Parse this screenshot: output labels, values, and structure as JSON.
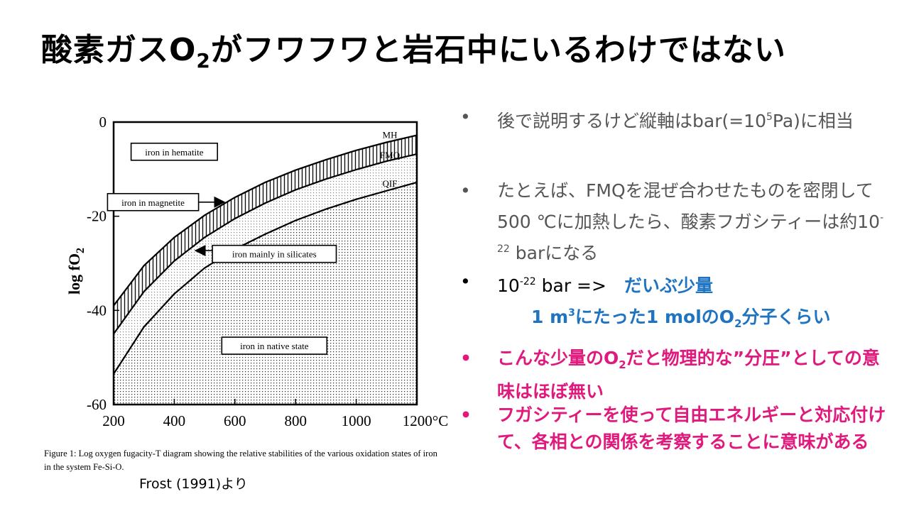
{
  "slide": {
    "title_a": "酸素ガスO",
    "title_sub": "2",
    "title_b": "がフワフワと岩石中にいるわけではない"
  },
  "figure": {
    "caption_line1": "Figure 1: Log oxygen fugacity-T diagram showing the relative stabilities of the various oxidation states of iron",
    "caption_line2": "in the system Fe-Si-O.",
    "credit": "Frost (1991)より"
  },
  "chart_data": {
    "type": "line",
    "xlabel": "",
    "ylabel": "log fO2",
    "ylabel_main": "log fO",
    "ylabel_sub": "2",
    "xlim": [
      200,
      1200
    ],
    "ylim": [
      -60,
      0
    ],
    "x_ticks": [
      200,
      400,
      600,
      800,
      1000,
      1200
    ],
    "x_tick_labels": [
      "200",
      "400",
      "600",
      "800",
      "1000",
      "1200°C"
    ],
    "y_ticks": [
      0,
      -20,
      -40,
      -60
    ],
    "y_tick_labels": [
      "0",
      "-20",
      "-40",
      "-60"
    ],
    "grid": false,
    "series": [
      {
        "name": "MH",
        "x": [
          200,
          300,
          400,
          500,
          600,
          700,
          800,
          900,
          1000,
          1100,
          1200
        ],
        "y": [
          -39,
          -30.5,
          -24.5,
          -19.8,
          -16,
          -12.8,
          -10.2,
          -8,
          -6,
          -4.3,
          -2.8
        ]
      },
      {
        "name": "FMQ",
        "x": [
          200,
          300,
          400,
          500,
          600,
          700,
          800,
          900,
          1000,
          1100,
          1200
        ],
        "y": [
          -45,
          -36,
          -29.5,
          -24.5,
          -20.5,
          -17.2,
          -14.4,
          -12.1,
          -10.1,
          -8.3,
          -6.8
        ]
      },
      {
        "name": "QIF",
        "x": [
          200,
          300,
          400,
          500,
          600,
          700,
          800,
          900,
          1000,
          1100,
          1200
        ],
        "y": [
          -53.5,
          -43.5,
          -36.5,
          -31,
          -27,
          -23.8,
          -20.9,
          -18.5,
          -16.4,
          -14.6,
          -12.8
        ]
      }
    ],
    "field_labels": [
      {
        "text": "iron in hematite",
        "x": 400,
        "y": -6.3
      },
      {
        "text": "iron in magnetite",
        "x": 330,
        "y": -17
      },
      {
        "text": "iron mainly in silicates",
        "x": 730,
        "y": -28
      },
      {
        "text": "iron in native state",
        "x": 730,
        "y": -47.5
      }
    ]
  },
  "bullets": {
    "b1_a": "後で説明するけど縦軸はbar(=10",
    "b1_sup": "5",
    "b1_b": "Pa)に相当",
    "b2_a": "たとえば、FMQを混ぜ合わせたものを密閉して500 ℃に加熱したら、酸素フガシティーは約10",
    "b2_sup": "-22",
    "b2_b": " barになる",
    "b3_a": "10",
    "b3_sup": "-22",
    "b3_b": " bar =>",
    "b3_blue1": "だいぶ少量",
    "b3_blue2a": "1 m",
    "b3_blue2_sup": "3",
    "b3_blue2b": "にたった1 molのO",
    "b3_blue2_sub": "2",
    "b3_blue2c": "分子くらい",
    "b4_a": "こんな少量のO",
    "b4_sub": "2",
    "b4_b": "だと物理的な”分圧”としての意味はほぼ無い",
    "b5": "フガシティーを使って自由エネルギーと対応付けて、各相との関係を考察することに意味がある"
  },
  "colors": {
    "text_gray": "#555555",
    "accent_blue": "#1f74c2",
    "accent_pink": "#e0197d"
  }
}
